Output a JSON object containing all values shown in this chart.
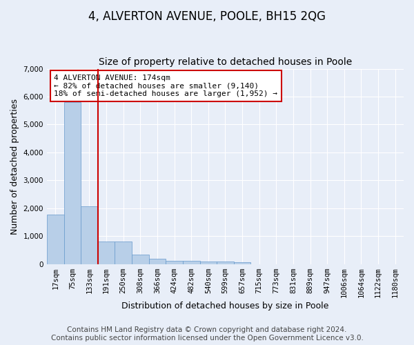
{
  "title": "4, ALVERTON AVENUE, POOLE, BH15 2QG",
  "subtitle": "Size of property relative to detached houses in Poole",
  "xlabel": "Distribution of detached houses by size in Poole",
  "ylabel": "Number of detached properties",
  "bar_labels": [
    "17sqm",
    "75sqm",
    "133sqm",
    "191sqm",
    "250sqm",
    "308sqm",
    "366sqm",
    "424sqm",
    "482sqm",
    "540sqm",
    "599sqm",
    "657sqm",
    "715sqm",
    "773sqm",
    "831sqm",
    "889sqm",
    "947sqm",
    "1006sqm",
    "1064sqm",
    "1122sqm",
    "1180sqm"
  ],
  "bar_values": [
    1780,
    5800,
    2080,
    800,
    800,
    340,
    200,
    120,
    110,
    100,
    100,
    70,
    0,
    0,
    0,
    0,
    0,
    0,
    0,
    0,
    0
  ],
  "bar_color": "#b8cfe8",
  "bar_edge_color": "#6699cc",
  "vline_index": 2.5,
  "vline_color": "#cc0000",
  "annotation_text": "4 ALVERTON AVENUE: 174sqm\n← 82% of detached houses are smaller (9,140)\n18% of semi-detached houses are larger (1,952) →",
  "annotation_box_edgecolor": "#cc0000",
  "annotation_box_facecolor": "#ffffff",
  "ylim": [
    0,
    7000
  ],
  "yticks": [
    0,
    1000,
    2000,
    3000,
    4000,
    5000,
    6000,
    7000
  ],
  "footer_line1": "Contains HM Land Registry data © Crown copyright and database right 2024.",
  "footer_line2": "Contains public sector information licensed under the Open Government Licence v3.0.",
  "background_color": "#e8eef8",
  "plot_bg_color": "#e8eef8",
  "title_fontsize": 12,
  "subtitle_fontsize": 10,
  "axis_label_fontsize": 9,
  "tick_fontsize": 7.5,
  "footer_fontsize": 7.5
}
